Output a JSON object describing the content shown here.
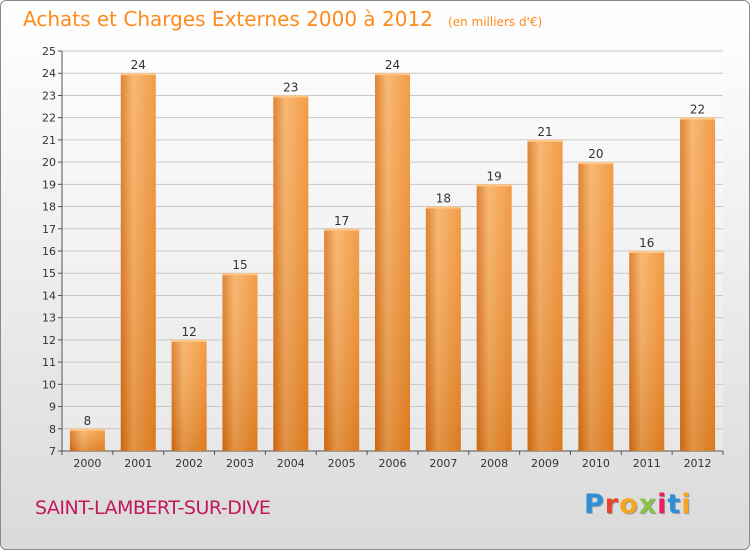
{
  "header": {
    "title": "Achats et Charges Externes 2000 à 2012",
    "subtitle": "(en milliers d'€)"
  },
  "footer": {
    "commune": "SAINT-LAMBERT-SUR-DIVE",
    "logo_text": "Proxiti",
    "logo_colors": [
      "#2e8fd6",
      "#e8452c",
      "#f5a623",
      "#8bc34a",
      "#e91e63",
      "#2e8fd6",
      "#f5a623"
    ]
  },
  "colors": {
    "bar": "#f08a26",
    "bar_light": "#f7ad5c",
    "bar_dark": "#d96f14",
    "title": "#ff8a1c",
    "commune": "#c2185b",
    "grid": "#c8c8c8",
    "axis_text": "#333333"
  },
  "chart_data": {
    "type": "bar",
    "title": "Achats et Charges Externes 2000 à 2012",
    "subtitle": "(en milliers d'€)",
    "categories": [
      "2000",
      "2001",
      "2002",
      "2003",
      "2004",
      "2005",
      "2006",
      "2007",
      "2008",
      "2009",
      "2010",
      "2011",
      "2012"
    ],
    "values": [
      8,
      24,
      12,
      15,
      23,
      17,
      24,
      18,
      19,
      21,
      20,
      16,
      22
    ],
    "ylim": [
      7,
      25
    ],
    "yticks": [
      7,
      8,
      9,
      10,
      11,
      12,
      13,
      14,
      15,
      16,
      17,
      18,
      19,
      20,
      21,
      22,
      23,
      24,
      25
    ],
    "grid": true,
    "data_labels": true
  }
}
